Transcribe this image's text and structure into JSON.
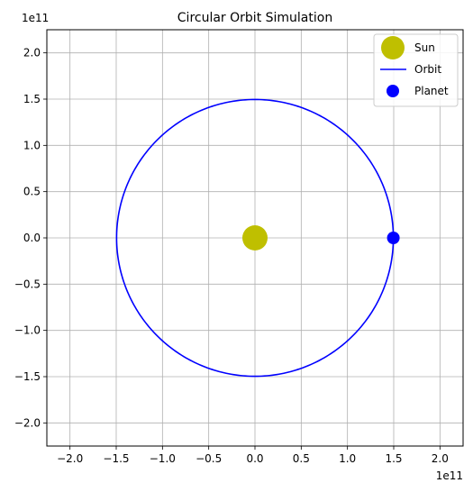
{
  "chart_data": {
    "type": "line",
    "title": "Circular Orbit Simulation",
    "xlabel": "",
    "ylabel": "",
    "x_offset_text": "1e11",
    "y_offset_text": "1e11",
    "xlim": [
      -2.25,
      2.25
    ],
    "ylim": [
      -2.25,
      2.25
    ],
    "axis_scale_factor": 100000000000.0,
    "xticks": [
      -2.0,
      -1.5,
      -1.0,
      -0.5,
      0.0,
      0.5,
      1.0,
      1.5,
      2.0
    ],
    "yticks": [
      -2.0,
      -1.5,
      -1.0,
      -0.5,
      0.0,
      0.5,
      1.0,
      1.5,
      2.0
    ],
    "xtick_labels": [
      "−2.0",
      "−1.5",
      "−1.0",
      "−0.5",
      "0.0",
      "0.5",
      "1.0",
      "1.5",
      "2.0"
    ],
    "ytick_labels": [
      "−2.0",
      "−1.5",
      "−1.0",
      "−0.5",
      "0.0",
      "0.5",
      "1.0",
      "1.5",
      "2.0"
    ],
    "grid": true,
    "legend_position": "top-right",
    "series": [
      {
        "name": "Sun",
        "kind": "point",
        "x": [
          0.0
        ],
        "y": [
          0.0
        ],
        "color": "#bfbf00",
        "marker": "circle"
      },
      {
        "name": "Orbit",
        "kind": "circle",
        "center": [
          0.0,
          0.0
        ],
        "radius": 1.496,
        "color": "#0000ff"
      },
      {
        "name": "Planet",
        "kind": "point",
        "x": [
          1.496
        ],
        "y": [
          0.0
        ],
        "color": "#0000ff",
        "marker": "circle"
      }
    ]
  }
}
